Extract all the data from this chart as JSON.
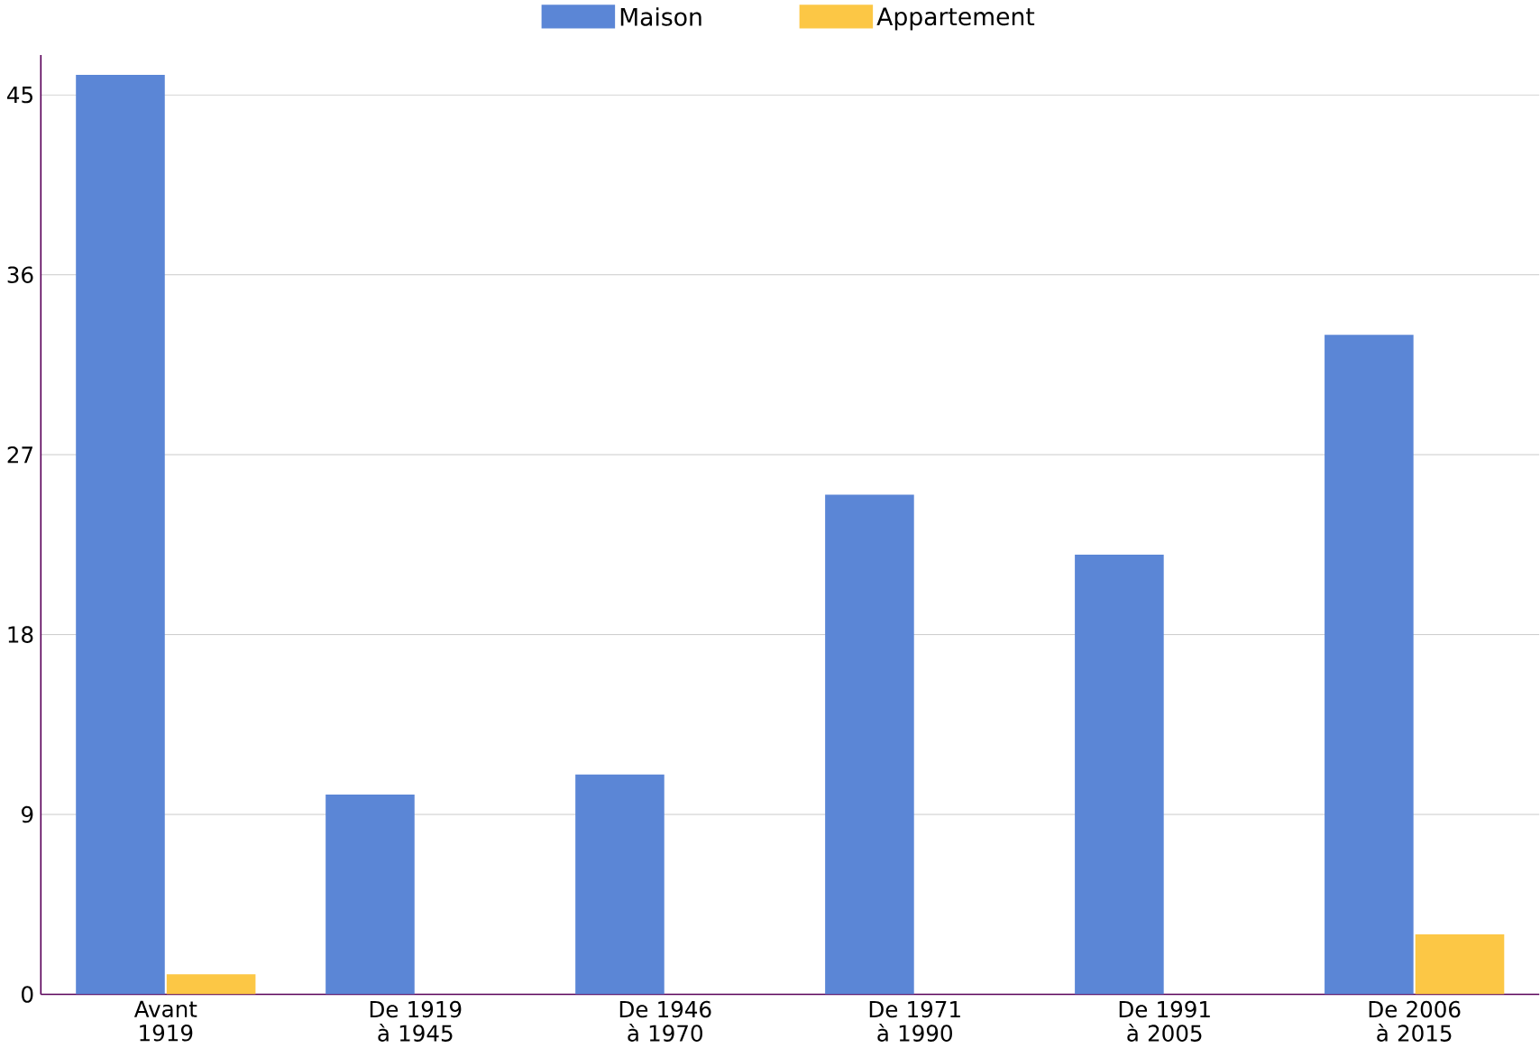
{
  "chart_data": {
    "type": "bar",
    "categories": [
      "Avant 1919",
      "De 1919 à 1945",
      "De 1946 à 1970",
      "De 1971 à 1990",
      "De 1991 à 2005",
      "De 2006 à 2015"
    ],
    "series": [
      {
        "name": "Maison",
        "color": "#5b86d6",
        "values": [
          46,
          10,
          11,
          25,
          22,
          33
        ]
      },
      {
        "name": "Appartement",
        "color": "#fcc745",
        "values": [
          1,
          0,
          0,
          0,
          0,
          3
        ]
      }
    ],
    "ylim": [
      0,
      47
    ],
    "yticks": [
      0,
      9,
      18,
      27,
      36,
      45
    ],
    "grid": "y",
    "legend": "top"
  }
}
